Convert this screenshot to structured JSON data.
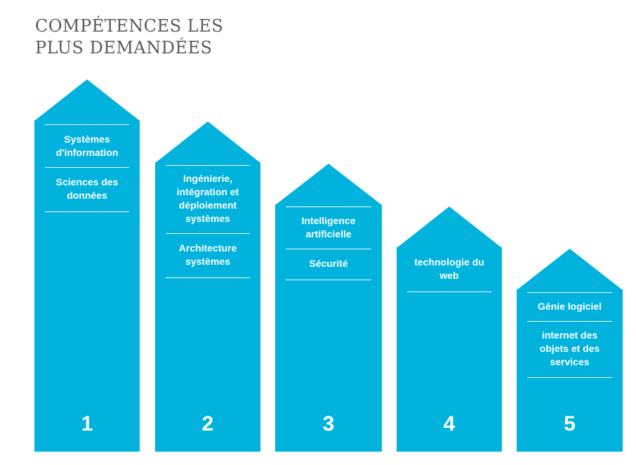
{
  "title": {
    "line1": "COMPÉTENCES LES",
    "line2": "PLUS DEMANDÉES"
  },
  "colors": {
    "accent": "#00b2dc",
    "text": "#ffffff",
    "title": "#5b5b5b"
  },
  "ranks": [
    {
      "number": "1",
      "skills": [
        "Systèmes d'information",
        "Sciences des données"
      ]
    },
    {
      "number": "2",
      "skills": [
        "Ingénierie, intégration et déploiement systèmes",
        "Architecture systèmes"
      ]
    },
    {
      "number": "3",
      "skills": [
        "Intelligence artificielle",
        "Sécurité"
      ]
    },
    {
      "number": "4",
      "skills": [
        "technologie du web"
      ]
    },
    {
      "number": "5",
      "skills": [
        "Génie logiciel",
        "internet des objets et des services"
      ]
    }
  ]
}
